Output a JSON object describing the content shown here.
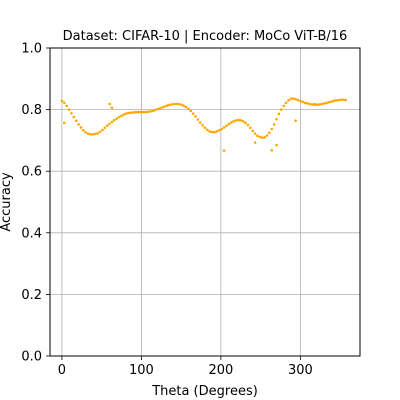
{
  "chart_data": {
    "type": "scatter",
    "title": "Dataset: CIFAR-10 | Encoder: MoCo ViT-B/16",
    "xlabel": "Theta (Degrees)",
    "ylabel": "Accuracy",
    "xlim": [
      -15,
      375
    ],
    "ylim": [
      0.0,
      1.0
    ],
    "xticks": [
      0,
      100,
      200,
      300
    ],
    "xtick_labels": [
      "0",
      "100",
      "200",
      "300"
    ],
    "yticks": [
      0.0,
      0.2,
      0.4,
      0.6,
      0.8,
      1.0
    ],
    "ytick_labels": [
      "0.0",
      "0.2",
      "0.4",
      "0.6",
      "0.8",
      "1.0"
    ],
    "grid": true,
    "marker_color": "#FFA500",
    "series": [
      {
        "x": [
          0,
          3,
          6,
          9,
          12,
          15,
          18,
          21,
          24,
          27,
          30,
          33,
          36,
          39,
          42,
          45,
          48,
          51,
          54,
          57,
          60,
          63,
          66,
          69,
          72,
          75,
          78,
          81,
          84,
          87,
          90,
          93,
          96,
          99,
          102,
          105,
          108,
          111,
          114,
          117,
          120,
          123,
          126,
          129,
          132,
          135,
          138,
          141,
          144,
          147,
          150,
          153,
          156,
          159,
          162,
          165,
          168,
          171,
          174,
          177,
          180,
          183,
          186,
          189,
          192,
          195,
          198,
          201,
          204,
          207,
          210,
          213,
          216,
          219,
          222,
          225,
          228,
          231,
          234,
          237,
          240,
          243,
          246,
          249,
          252,
          255,
          258,
          261,
          264,
          267,
          270,
          273,
          276,
          279,
          282,
          285,
          288,
          291,
          294,
          297,
          300,
          303,
          306,
          309,
          312,
          315,
          318,
          321,
          324,
          327,
          330,
          333,
          336,
          339,
          342,
          345,
          348,
          351,
          354,
          357,
          3,
          60,
          63,
          204,
          243,
          264,
          270,
          294,
          318
        ],
        "y": [
          0.828,
          0.822,
          0.812,
          0.8,
          0.788,
          0.776,
          0.764,
          0.752,
          0.742,
          0.733,
          0.726,
          0.722,
          0.72,
          0.72,
          0.721,
          0.723,
          0.728,
          0.734,
          0.741,
          0.748,
          0.754,
          0.76,
          0.766,
          0.771,
          0.776,
          0.78,
          0.784,
          0.787,
          0.789,
          0.79,
          0.791,
          0.792,
          0.792,
          0.792,
          0.792,
          0.792,
          0.793,
          0.794,
          0.796,
          0.798,
          0.801,
          0.804,
          0.807,
          0.81,
          0.813,
          0.815,
          0.817,
          0.818,
          0.818,
          0.818,
          0.816,
          0.813,
          0.809,
          0.803,
          0.796,
          0.787,
          0.778,
          0.768,
          0.758,
          0.749,
          0.741,
          0.734,
          0.729,
          0.727,
          0.727,
          0.729,
          0.733,
          0.737,
          0.742,
          0.747,
          0.753,
          0.758,
          0.762,
          0.765,
          0.766,
          0.765,
          0.762,
          0.757,
          0.75,
          0.741,
          0.731,
          0.722,
          0.715,
          0.711,
          0.709,
          0.71,
          0.716,
          0.725,
          0.737,
          0.752,
          0.769,
          0.786,
          0.8,
          0.812,
          0.822,
          0.83,
          0.835,
          0.836,
          0.834,
          0.831,
          0.828,
          0.825,
          0.822,
          0.82,
          0.818,
          0.817,
          0.816,
          0.816,
          0.817,
          0.818,
          0.82,
          0.822,
          0.824,
          0.826,
          0.828,
          0.83,
          0.831,
          0.832,
          0.832,
          0.831,
          0.757,
          0.818,
          0.806,
          0.667,
          0.693,
          0.668,
          0.685,
          0.764,
          0.818
        ]
      }
    ]
  }
}
